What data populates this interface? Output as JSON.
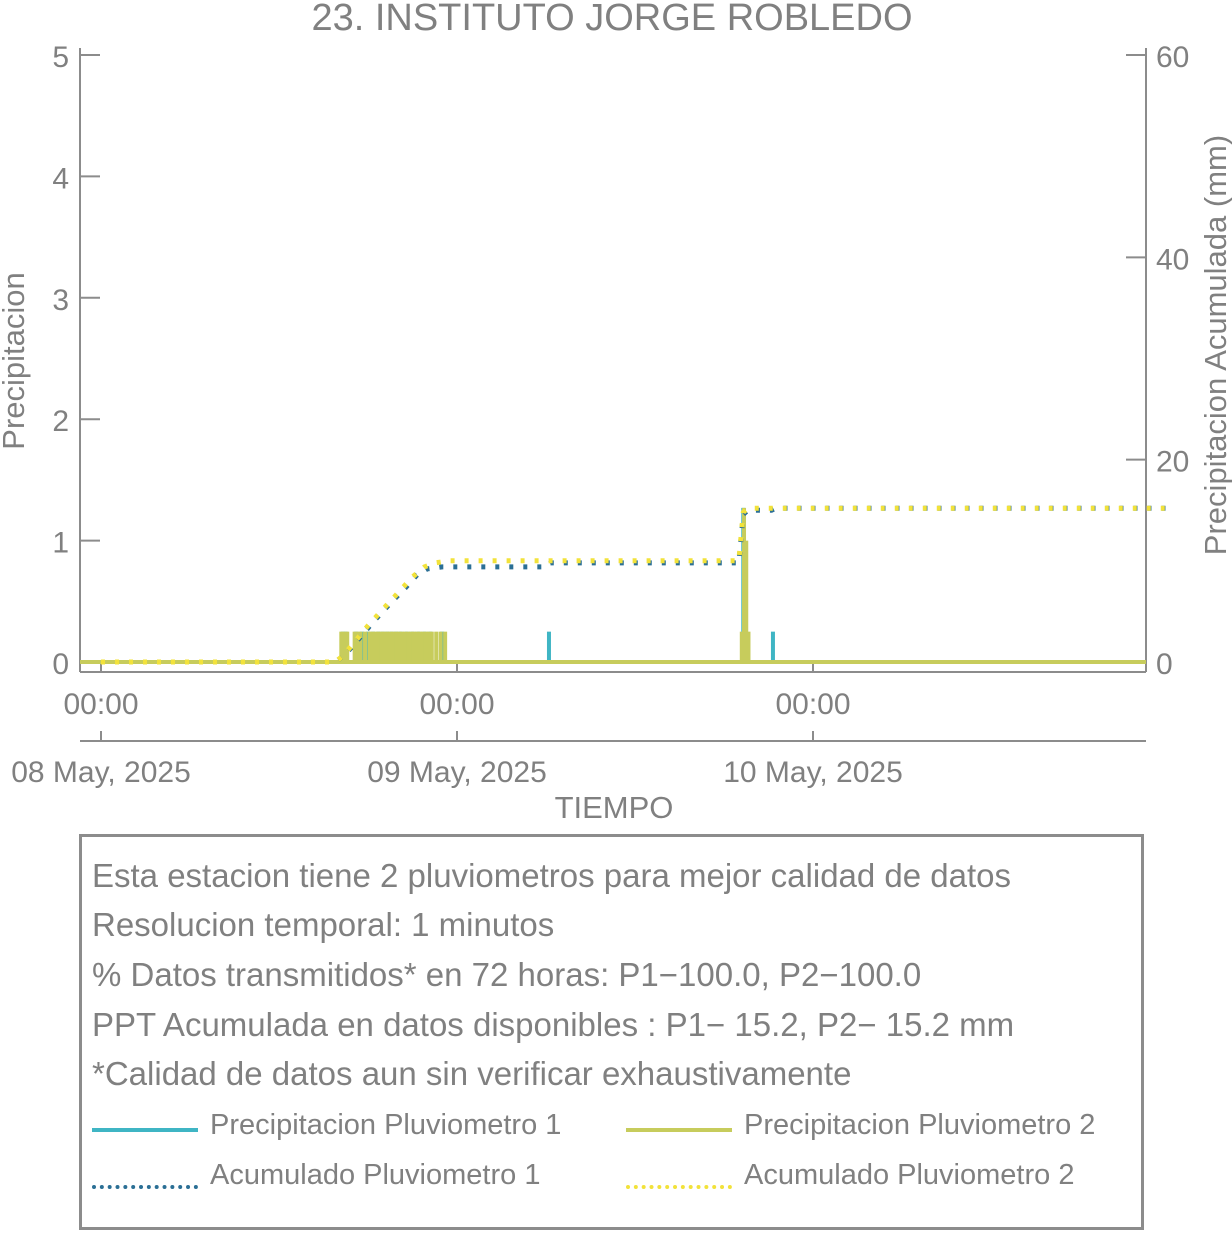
{
  "chart_data": {
    "type": "line",
    "title": "23. INSTITUTO JORGE ROBLEDO",
    "xlabel": "TIEMPO",
    "ylabel_left": "Precipitacion",
    "ylabel_right": "Precipitacion Acumulada (mm)",
    "ylim_left": [
      0,
      5
    ],
    "ylim_right": [
      0,
      60
    ],
    "yticks_left": [
      "0",
      "1",
      "2",
      "3",
      "4",
      "5"
    ],
    "yticks_right": [
      "0",
      "20",
      "40",
      "60"
    ],
    "x_range_hours": [
      0,
      72
    ],
    "xticks": [
      {
        "time": "00:00",
        "date": "08 May, 2025"
      },
      {
        "time": "00:00",
        "date": "09 May, 2025"
      },
      {
        "time": "00:00",
        "date": "10 May, 2025"
      }
    ],
    "grid": false,
    "series": [
      {
        "name": "Precipitacion Pluviometro 1",
        "axis": "left",
        "color": "#3fb5c4",
        "style": "solid",
        "bars": [
          [
            16.3,
            0.25
          ],
          [
            16.5,
            0.25
          ],
          [
            17.2,
            0.25
          ],
          [
            17.6,
            0.25
          ],
          [
            18.0,
            0.25
          ],
          [
            18.35,
            0.25
          ],
          [
            18.7,
            0.25
          ],
          [
            19.0,
            0.25
          ],
          [
            19.3,
            0.25
          ],
          [
            19.6,
            0.25
          ],
          [
            19.9,
            0.25
          ],
          [
            20.2,
            0.25
          ],
          [
            20.6,
            0.25
          ],
          [
            21.0,
            0.25
          ],
          [
            21.4,
            0.25
          ],
          [
            21.8,
            0.25
          ],
          [
            22.2,
            0.25
          ],
          [
            23.0,
            0.25
          ],
          [
            30.2,
            0.25
          ],
          [
            43.3,
            1.27
          ],
          [
            43.5,
            0.25
          ],
          [
            45.3,
            0.25
          ]
        ]
      },
      {
        "name": "Precipitacion Pluviometro 2",
        "axis": "left",
        "color": "#c7cc5c",
        "style": "solid",
        "bars": [
          [
            16.2,
            0.25
          ],
          [
            16.4,
            0.25
          ],
          [
            16.6,
            0.25
          ],
          [
            17.1,
            0.25
          ],
          [
            17.3,
            0.25
          ],
          [
            17.5,
            0.25
          ],
          [
            17.8,
            0.25
          ],
          [
            18.1,
            0.25
          ],
          [
            18.3,
            0.25
          ],
          [
            18.5,
            0.25
          ],
          [
            18.7,
            0.25
          ],
          [
            18.9,
            0.25
          ],
          [
            19.1,
            0.25
          ],
          [
            19.3,
            0.25
          ],
          [
            19.5,
            0.25
          ],
          [
            19.7,
            0.25
          ],
          [
            19.9,
            0.25
          ],
          [
            20.1,
            0.25
          ],
          [
            20.3,
            0.25
          ],
          [
            20.5,
            0.25
          ],
          [
            20.7,
            0.25
          ],
          [
            20.9,
            0.25
          ],
          [
            21.1,
            0.25
          ],
          [
            21.3,
            0.25
          ],
          [
            21.5,
            0.25
          ],
          [
            21.7,
            0.25
          ],
          [
            21.9,
            0.25
          ],
          [
            22.1,
            0.25
          ],
          [
            22.3,
            0.25
          ],
          [
            22.6,
            0.25
          ],
          [
            22.9,
            0.25
          ],
          [
            23.2,
            0.25
          ],
          [
            43.2,
            0.25
          ],
          [
            43.35,
            1.27
          ],
          [
            43.5,
            1.0
          ],
          [
            43.65,
            0.25
          ]
        ]
      },
      {
        "name": "Acumulado Pluviometro 1",
        "axis": "right",
        "color": "#2b6f95",
        "style": "dotted",
        "points": [
          [
            0,
            0
          ],
          [
            15.8,
            0
          ],
          [
            16.5,
            0.8
          ],
          [
            17.5,
            2.5
          ],
          [
            18.5,
            4.2
          ],
          [
            19.5,
            5.8
          ],
          [
            20.5,
            7.3
          ],
          [
            21.3,
            8.6
          ],
          [
            22.0,
            9.2
          ],
          [
            23.0,
            9.4
          ],
          [
            30.0,
            9.4
          ],
          [
            30.3,
            9.8
          ],
          [
            43.0,
            9.8
          ],
          [
            43.3,
            14.6
          ],
          [
            43.6,
            15.0
          ],
          [
            45.2,
            15.0
          ],
          [
            45.5,
            15.2
          ],
          [
            72,
            15.2
          ]
        ]
      },
      {
        "name": "Acumulado Pluviometro 2",
        "axis": "right",
        "color": "#f2e23a",
        "style": "dotted",
        "points": [
          [
            0,
            0
          ],
          [
            15.8,
            0
          ],
          [
            16.3,
            0.6
          ],
          [
            17.0,
            1.8
          ],
          [
            18.0,
            3.6
          ],
          [
            19.0,
            5.2
          ],
          [
            20.0,
            6.8
          ],
          [
            21.0,
            8.4
          ],
          [
            21.8,
            9.4
          ],
          [
            22.5,
            9.8
          ],
          [
            23.5,
            10.0
          ],
          [
            43.0,
            10.0
          ],
          [
            43.3,
            14.8
          ],
          [
            43.6,
            15.2
          ],
          [
            72,
            15.2
          ]
        ]
      }
    ]
  },
  "info": {
    "line1": "Esta estacion tiene 2 pluviometros para mejor calidad de datos",
    "line2": "Resolucion temporal: 1 minutos",
    "line3": "% Datos transmitidos* en 72 horas: P1−100.0, P2−100.0",
    "line4": "PPT Acumulada en datos disponibles : P1− 15.2, P2− 15.2 mm",
    "line5": "*Calidad de datos aun sin verificar exhaustivamente"
  },
  "legend": [
    {
      "label": "Precipitacion Pluviometro 1",
      "color": "#3fb5c4",
      "style": "solid"
    },
    {
      "label": "Precipitacion Pluviometro 2",
      "color": "#c7cc5c",
      "style": "solid"
    },
    {
      "label": "Acumulado Pluviometro 1",
      "color": "#2b6f95",
      "style": "dotted"
    },
    {
      "label": "Acumulado Pluviometro 2",
      "color": "#f2e23a",
      "style": "dotted"
    }
  ]
}
